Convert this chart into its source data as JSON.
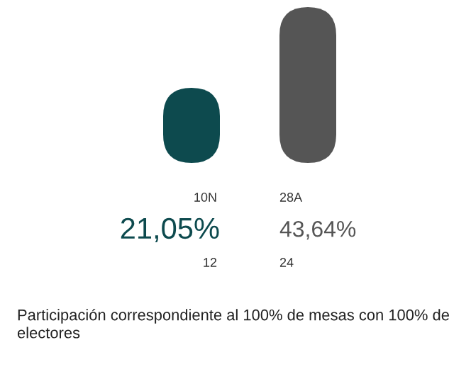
{
  "chart_data": {
    "type": "bar",
    "categories": [
      "10N",
      "28A"
    ],
    "values": [
      21.05,
      43.64
    ],
    "colors": [
      "#0d4a4e",
      "#555555"
    ],
    "value_labels": [
      "21,05%",
      "43,64%"
    ],
    "annotations": [
      "12",
      "24",
      "Participación correspondiente al 100% de mesas con 100% de electores"
    ]
  }
}
